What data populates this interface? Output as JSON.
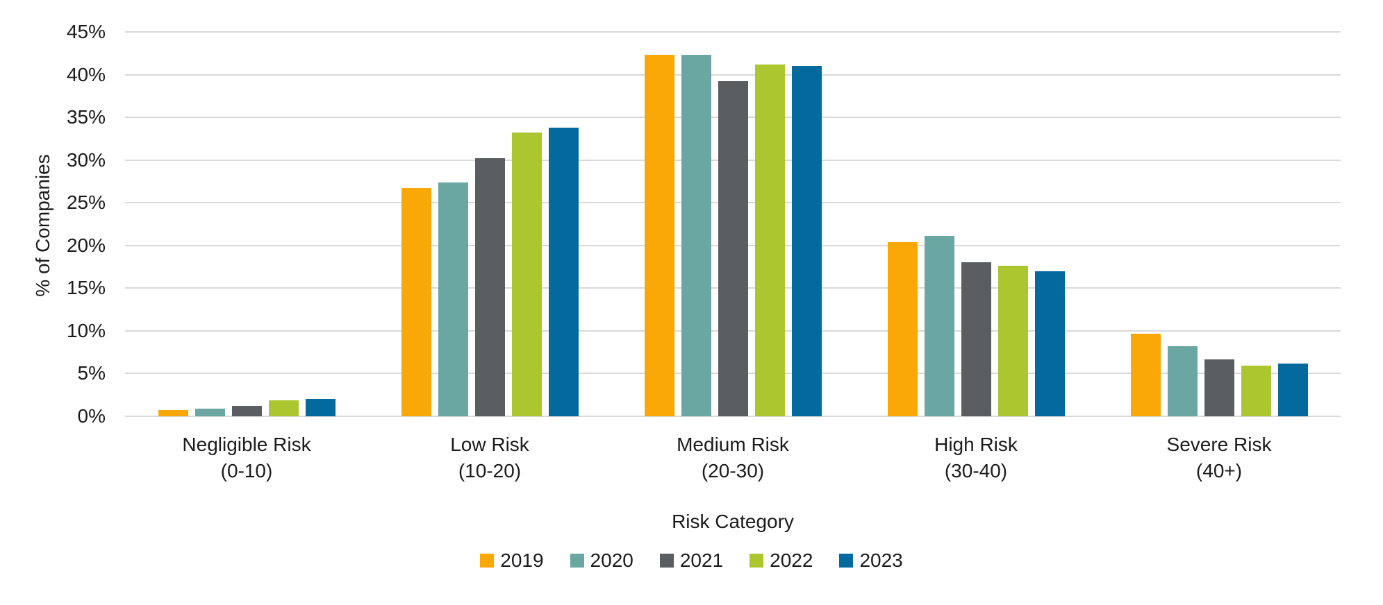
{
  "chart_data": {
    "type": "bar",
    "title": "",
    "xlabel": "Risk Category",
    "ylabel": "% of Companies",
    "ylim": [
      0,
      45
    ],
    "ytick_step": 5,
    "ytick_labels_top_to_bottom": [
      "45%",
      "40%",
      "35%",
      "30%",
      "25%",
      "20%",
      "15%",
      "10%",
      "5%",
      "0%"
    ],
    "grid": true,
    "gridline_color": "#d9d9d9",
    "legend_position": "bottom",
    "categories": [
      {
        "name": "Negligible Risk",
        "range": "(0-10)"
      },
      {
        "name": "Low Risk",
        "range": "(10-20)"
      },
      {
        "name": "Medium Risk",
        "range": "(20-30)"
      },
      {
        "name": "High Risk",
        "range": "(30-40)"
      },
      {
        "name": "Severe Risk",
        "range": "(40+)"
      }
    ],
    "series": [
      {
        "name": "2019",
        "color": "#F9A807",
        "values": [
          0.7,
          26.7,
          42.3,
          20.4,
          9.7
        ]
      },
      {
        "name": "2020",
        "color": "#6BA7A2",
        "values": [
          0.9,
          27.4,
          42.3,
          21.1,
          8.2
        ]
      },
      {
        "name": "2021",
        "color": "#5A5E61",
        "values": [
          1.2,
          30.2,
          39.2,
          18.0,
          6.7
        ]
      },
      {
        "name": "2022",
        "color": "#ACC62F",
        "values": [
          1.9,
          33.2,
          41.2,
          17.6,
          5.9
        ]
      },
      {
        "name": "2023",
        "color": "#04699C",
        "values": [
          2.0,
          33.8,
          41.0,
          17.0,
          6.2
        ]
      }
    ]
  }
}
